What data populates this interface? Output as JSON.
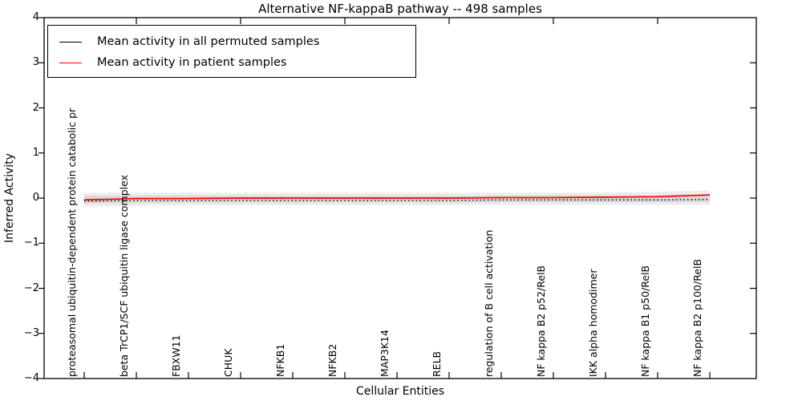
{
  "title": "Alternative NF-kappaB pathway -- 498 samples",
  "legend": {
    "items": [
      {
        "label": "Mean activity in all permuted samples",
        "color": "#000000"
      },
      {
        "label": "Mean activity in patient samples",
        "color": "#ff0000"
      }
    ]
  },
  "chart_data": {
    "type": "line",
    "title": "Alternative NF-kappaB pathway -- 498 samples",
    "xlabel": "Cellular Entities",
    "ylabel": "Inferred Activity",
    "ylim": [
      -4,
      4
    ],
    "yticks": [
      4,
      3,
      2,
      1,
      0,
      -1,
      -2,
      -3,
      -4
    ],
    "ytick_labels": [
      "4",
      "3",
      "2",
      "1",
      "0",
      "−1",
      "−2",
      "−3",
      "−4"
    ],
    "grid": false,
    "legend_position": "upper left",
    "categories": [
      "proteasomal ubiquitin-dependent protein catabolic pr",
      "beta TrCP1/SCF ubiquitin ligase complex",
      "FBXW11",
      "CHUK",
      "NFKB1",
      "NFKB2",
      "MAP3K14",
      "RELB",
      "regulation of B cell activation",
      "NF kappa B2 p52/RelB",
      "IKK alpha homodimer",
      "NF kappa B1 p50/RelB",
      "NF kappa B2 p100/RelB"
    ],
    "series": [
      {
        "name": "Mean activity in all permuted samples",
        "color": "#000000",
        "style": "dotted",
        "values": [
          -0.07,
          -0.05,
          -0.05,
          -0.05,
          -0.05,
          -0.05,
          -0.05,
          -0.05,
          -0.04,
          -0.04,
          -0.04,
          -0.04,
          -0.03
        ]
      },
      {
        "name": "Mean activity in patient samples",
        "color": "#ff0000",
        "style": "solid",
        "values": [
          -0.04,
          -0.01,
          -0.01,
          0.0,
          0.0,
          0.0,
          0.0,
          0.0,
          0.01,
          0.01,
          0.02,
          0.03,
          0.07
        ]
      }
    ],
    "band": {
      "description": "gray uncertainty band around permuted mean",
      "color": "rgba(0,0,0,0.07)",
      "inner_color": "rgba(0,0,0,0.09)",
      "outer_upper": [
        0.12,
        0.12,
        0.12,
        0.12,
        0.12,
        0.12,
        0.12,
        0.12,
        0.12,
        0.12,
        0.13,
        0.14,
        0.17
      ],
      "outer_lower": [
        -0.19,
        -0.17,
        -0.16,
        -0.16,
        -0.16,
        -0.16,
        -0.16,
        -0.16,
        -0.15,
        -0.15,
        -0.15,
        -0.15,
        -0.15
      ],
      "inner_upper": [
        0.05,
        0.05,
        0.05,
        0.05,
        0.05,
        0.05,
        0.05,
        0.05,
        0.05,
        0.06,
        0.06,
        0.07,
        0.1
      ],
      "inner_lower": [
        -0.12,
        -0.11,
        -0.1,
        -0.1,
        -0.1,
        -0.1,
        -0.1,
        -0.1,
        -0.09,
        -0.09,
        -0.09,
        -0.09,
        -0.08
      ]
    }
  }
}
